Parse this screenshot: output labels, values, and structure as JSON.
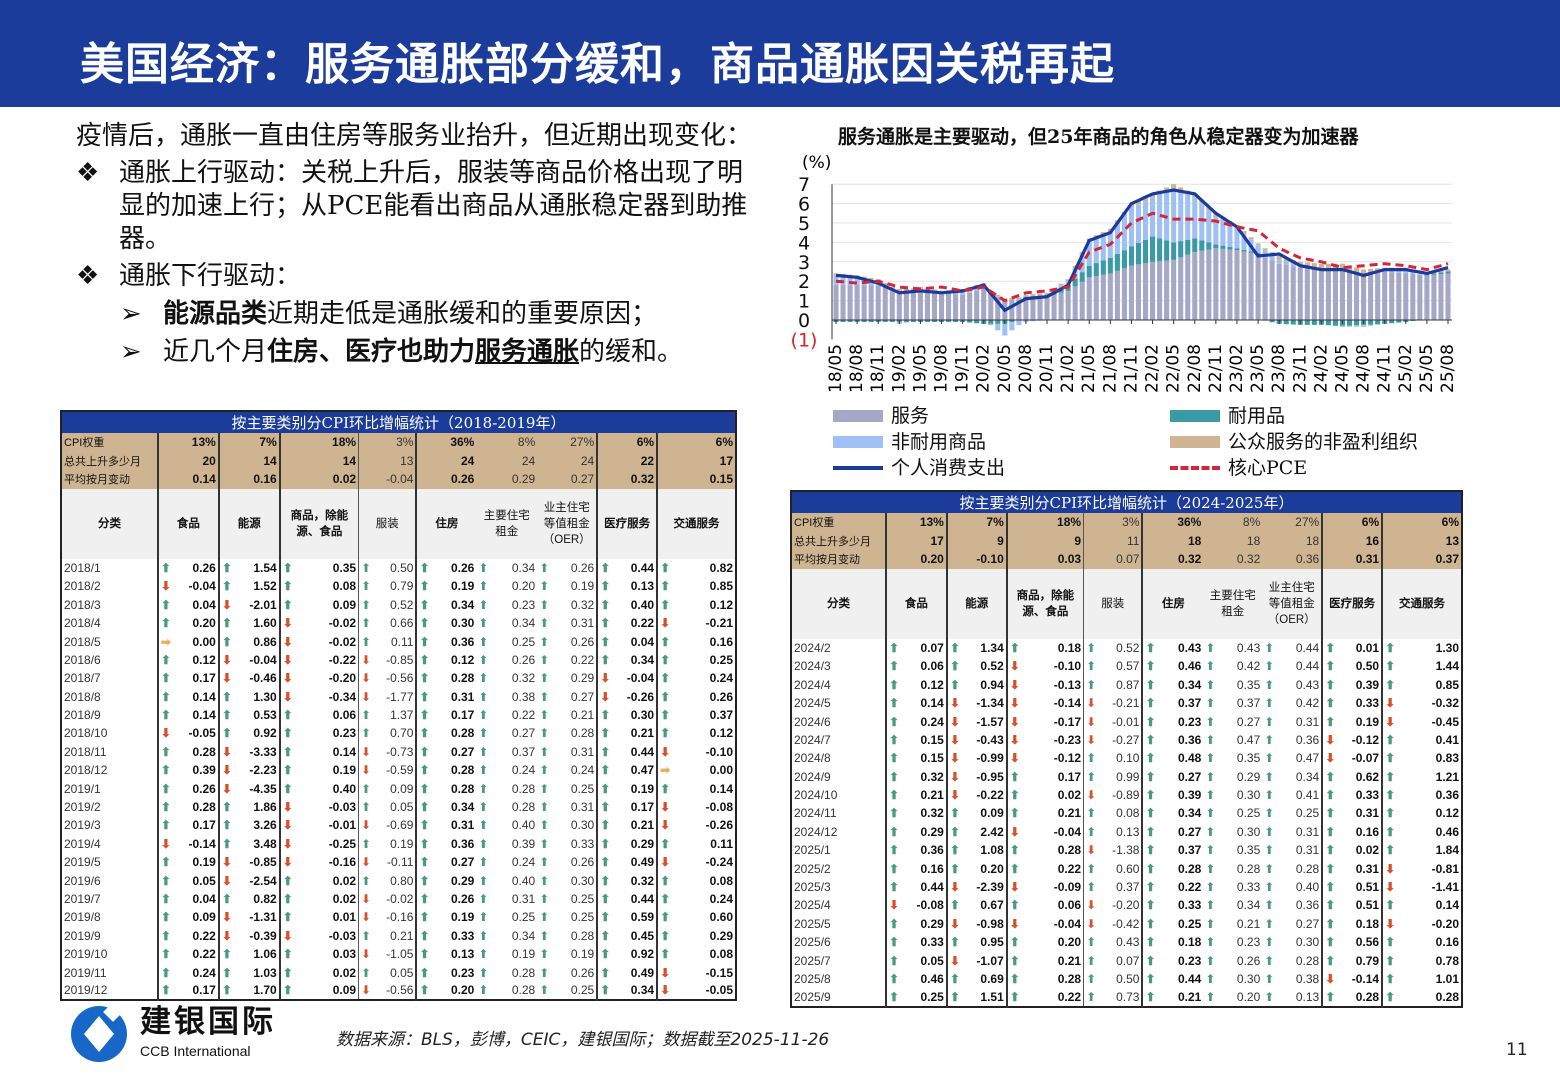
{
  "header": {
    "title": "美国经济：服务通胀部分缓和，商品通胀因关税再起"
  },
  "text": {
    "intro": "疫情后，通胀一直由住房等服务业抬升，但近期出现变化：",
    "bullet_marker": "❖",
    "sub_marker": "➢",
    "b1": "通胀上行驱动：关税上升后，服装等商品价格出现了明显的加速上行；从PCE能看出商品从通胀稳定器到助推器。",
    "b2": "通胀下行驱动：",
    "s1_bold": "能源品类",
    "s1_rest": "近期走低是通胀缓和的重要原因；",
    "s2_pre": "近几个月",
    "s2_bold": "住房、医疗也助力",
    "s2_ul": "服务通胀",
    "s2_rest": "的缓和。"
  },
  "columns": [
    "分类",
    "食品",
    "能源",
    "商品，除能源、食品",
    "服装",
    "住房",
    "主要住宅租金",
    "业主住宅等值租金（OER）",
    "医疗服务",
    "交通服务"
  ],
  "summary_labels": [
    "CPI权重",
    "总共上升多少月",
    "平均按月变动"
  ],
  "table_left": {
    "title": "按主要类别分CPI环比增幅统计（2018-2019年）",
    "summary": [
      [
        "13%",
        "7%",
        "18%",
        "3%",
        "36%",
        "8%",
        "27%",
        "6%",
        "6%"
      ],
      [
        "20",
        "14",
        "14",
        "13",
        "24",
        "24",
        "24",
        "22",
        "17"
      ],
      [
        "0.14",
        "0.16",
        "0.02",
        "-0.04",
        "0.26",
        "0.29",
        "0.27",
        "0.32",
        "0.15"
      ]
    ],
    "rows": [
      [
        "2018/1",
        "0.26",
        "1.54",
        "0.35",
        "0.50",
        "0.26",
        "0.34",
        "0.26",
        "0.44",
        "0.82"
      ],
      [
        "2018/2",
        "-0.04",
        "1.52",
        "0.08",
        "0.79",
        "0.19",
        "0.20",
        "0.19",
        "0.13",
        "0.85"
      ],
      [
        "2018/3",
        "0.04",
        "-2.01",
        "0.09",
        "0.52",
        "0.34",
        "0.23",
        "0.32",
        "0.40",
        "0.12"
      ],
      [
        "2018/4",
        "0.20",
        "1.60",
        "-0.02",
        "0.66",
        "0.30",
        "0.34",
        "0.31",
        "0.22",
        "-0.21"
      ],
      [
        "2018/5",
        "0.00",
        "0.86",
        "-0.02",
        "0.11",
        "0.36",
        "0.25",
        "0.26",
        "0.04",
        "0.16"
      ],
      [
        "2018/6",
        "0.12",
        "-0.04",
        "-0.22",
        "-0.85",
        "0.12",
        "0.26",
        "0.22",
        "0.34",
        "0.25"
      ],
      [
        "2018/7",
        "0.17",
        "-0.46",
        "-0.20",
        "-0.56",
        "0.28",
        "0.32",
        "0.29",
        "-0.04",
        "0.24"
      ],
      [
        "2018/8",
        "0.14",
        "1.30",
        "-0.34",
        "-1.77",
        "0.31",
        "0.38",
        "0.27",
        "-0.26",
        "0.26"
      ],
      [
        "2018/9",
        "0.14",
        "0.53",
        "0.06",
        "1.37",
        "0.17",
        "0.22",
        "0.21",
        "0.30",
        "0.37"
      ],
      [
        "2018/10",
        "-0.05",
        "0.92",
        "0.23",
        "0.70",
        "0.28",
        "0.27",
        "0.28",
        "0.21",
        "0.12"
      ],
      [
        "2018/11",
        "0.28",
        "-3.33",
        "0.14",
        "-0.73",
        "0.27",
        "0.37",
        "0.31",
        "0.44",
        "-0.10"
      ],
      [
        "2018/12",
        "0.39",
        "-2.23",
        "0.19",
        "-0.59",
        "0.28",
        "0.24",
        "0.24",
        "0.47",
        "0.00"
      ],
      [
        "2019/1",
        "0.26",
        "-4.35",
        "0.40",
        "0.09",
        "0.28",
        "0.28",
        "0.25",
        "0.19",
        "0.14"
      ],
      [
        "2019/2",
        "0.28",
        "1.86",
        "-0.03",
        "0.05",
        "0.34",
        "0.28",
        "0.31",
        "0.17",
        "-0.08"
      ],
      [
        "2019/3",
        "0.17",
        "3.26",
        "-0.01",
        "-0.69",
        "0.31",
        "0.40",
        "0.30",
        "0.21",
        "-0.26"
      ],
      [
        "2019/4",
        "-0.14",
        "3.48",
        "-0.25",
        "0.19",
        "0.36",
        "0.39",
        "0.33",
        "0.29",
        "0.11"
      ],
      [
        "2019/5",
        "0.19",
        "-0.85",
        "-0.16",
        "-0.11",
        "0.27",
        "0.24",
        "0.26",
        "0.49",
        "-0.24"
      ],
      [
        "2019/6",
        "0.05",
        "-2.54",
        "0.02",
        "0.80",
        "0.29",
        "0.40",
        "0.30",
        "0.32",
        "0.08"
      ],
      [
        "2019/7",
        "0.04",
        "0.82",
        "0.02",
        "-0.02",
        "0.26",
        "0.31",
        "0.25",
        "0.44",
        "0.24"
      ],
      [
        "2019/8",
        "0.09",
        "-1.31",
        "0.01",
        "-0.16",
        "0.19",
        "0.25",
        "0.25",
        "0.59",
        "0.60"
      ],
      [
        "2019/9",
        "0.22",
        "-0.39",
        "-0.03",
        "0.21",
        "0.33",
        "0.34",
        "0.28",
        "0.45",
        "0.29"
      ],
      [
        "2019/10",
        "0.22",
        "1.06",
        "0.03",
        "-1.05",
        "0.13",
        "0.19",
        "0.19",
        "0.92",
        "0.08"
      ],
      [
        "2019/11",
        "0.24",
        "1.03",
        "0.02",
        "0.05",
        "0.23",
        "0.28",
        "0.26",
        "0.49",
        "-0.15"
      ],
      [
        "2019/12",
        "0.17",
        "1.70",
        "0.09",
        "-0.56",
        "0.20",
        "0.28",
        "0.25",
        "0.34",
        "-0.05"
      ]
    ]
  },
  "table_right": {
    "title": "按主要类别分CPI环比增幅统计（2024-2025年）",
    "summary": [
      [
        "13%",
        "7%",
        "18%",
        "3%",
        "36%",
        "8%",
        "27%",
        "6%",
        "6%"
      ],
      [
        "17",
        "9",
        "9",
        "11",
        "18",
        "18",
        "18",
        "16",
        "13"
      ],
      [
        "0.20",
        "-0.10",
        "0.03",
        "0.07",
        "0.32",
        "0.32",
        "0.36",
        "0.31",
        "0.37"
      ]
    ],
    "rows": [
      [
        "2024/2",
        "0.07",
        "1.34",
        "0.18",
        "0.52",
        "0.43",
        "0.43",
        "0.44",
        "0.01",
        "1.30"
      ],
      [
        "2024/3",
        "0.06",
        "0.52",
        "-0.10",
        "0.57",
        "0.46",
        "0.42",
        "0.44",
        "0.50",
        "1.44"
      ],
      [
        "2024/4",
        "0.12",
        "0.94",
        "-0.13",
        "0.87",
        "0.34",
        "0.35",
        "0.43",
        "0.39",
        "0.85"
      ],
      [
        "2024/5",
        "0.14",
        "-1.34",
        "-0.14",
        "-0.21",
        "0.37",
        "0.37",
        "0.42",
        "0.33",
        "-0.32"
      ],
      [
        "2024/6",
        "0.24",
        "-1.57",
        "-0.17",
        "-0.01",
        "0.23",
        "0.27",
        "0.31",
        "0.19",
        "-0.45"
      ],
      [
        "2024/7",
        "0.15",
        "-0.43",
        "-0.23",
        "-0.27",
        "0.36",
        "0.47",
        "0.36",
        "-0.12",
        "0.41"
      ],
      [
        "2024/8",
        "0.15",
        "-0.99",
        "-0.12",
        "0.10",
        "0.48",
        "0.35",
        "0.47",
        "-0.07",
        "0.83"
      ],
      [
        "2024/9",
        "0.32",
        "-0.95",
        "0.17",
        "0.99",
        "0.27",
        "0.29",
        "0.34",
        "0.62",
        "1.21"
      ],
      [
        "2024/10",
        "0.21",
        "-0.22",
        "0.02",
        "-0.89",
        "0.39",
        "0.30",
        "0.41",
        "0.33",
        "0.36"
      ],
      [
        "2024/11",
        "0.32",
        "0.09",
        "0.21",
        "0.08",
        "0.34",
        "0.25",
        "0.25",
        "0.31",
        "0.12"
      ],
      [
        "2024/12",
        "0.29",
        "2.42",
        "-0.04",
        "0.13",
        "0.27",
        "0.30",
        "0.31",
        "0.16",
        "0.46"
      ],
      [
        "2025/1",
        "0.36",
        "1.08",
        "0.28",
        "-1.38",
        "0.37",
        "0.35",
        "0.31",
        "0.02",
        "1.84"
      ],
      [
        "2025/2",
        "0.16",
        "0.20",
        "0.22",
        "0.60",
        "0.28",
        "0.28",
        "0.28",
        "0.31",
        "-0.81"
      ],
      [
        "2025/3",
        "0.44",
        "-2.39",
        "-0.09",
        "0.37",
        "0.22",
        "0.33",
        "0.40",
        "0.51",
        "-1.41"
      ],
      [
        "2025/4",
        "-0.08",
        "0.67",
        "0.06",
        "-0.20",
        "0.33",
        "0.34",
        "0.36",
        "0.51",
        "0.14"
      ],
      [
        "2025/5",
        "0.29",
        "-0.98",
        "-0.04",
        "-0.42",
        "0.25",
        "0.21",
        "0.27",
        "0.18",
        "-0.20"
      ],
      [
        "2025/6",
        "0.33",
        "0.95",
        "0.20",
        "0.43",
        "0.18",
        "0.23",
        "0.30",
        "0.56",
        "0.16"
      ],
      [
        "2025/7",
        "0.05",
        "-1.07",
        "0.21",
        "0.07",
        "0.23",
        "0.26",
        "0.28",
        "0.79",
        "0.78"
      ],
      [
        "2025/8",
        "0.46",
        "0.69",
        "0.28",
        "0.50",
        "0.44",
        "0.30",
        "0.38",
        "-0.14",
        "1.01"
      ],
      [
        "2025/9",
        "0.25",
        "1.51",
        "0.22",
        "0.73",
        "0.21",
        "0.20",
        "0.13",
        "0.28",
        "0.28"
      ]
    ]
  },
  "chart_data": {
    "type": "bar+line",
    "title": "服务通胀是主要驱动，但25年商品的角色从稳定器变为加速器",
    "ylabel": "(%)",
    "ylim": [
      -1,
      7
    ],
    "yticks": [
      "(1)",
      "0",
      "1",
      "2",
      "3",
      "4",
      "5",
      "6",
      "7"
    ],
    "x": [
      "18/05",
      "18/08",
      "18/11",
      "19/02",
      "19/05",
      "19/08",
      "19/11",
      "20/02",
      "20/05",
      "20/08",
      "20/11",
      "21/02",
      "21/05",
      "21/08",
      "21/11",
      "22/02",
      "22/05",
      "22/08",
      "22/11",
      "23/02",
      "23/05",
      "23/08",
      "23/11",
      "24/02",
      "24/05",
      "24/08",
      "24/11",
      "25/02",
      "25/05",
      "25/08"
    ],
    "series": [
      {
        "name": "服务",
        "kind": "bar",
        "color": "#a4a8c6",
        "values": [
          1.8,
          1.8,
          1.8,
          1.5,
          1.5,
          1.4,
          1.3,
          1.6,
          1.0,
          1.1,
          1.2,
          1.5,
          2.2,
          2.4,
          2.8,
          3.0,
          3.1,
          3.5,
          3.7,
          3.6,
          3.4,
          2.9,
          2.7,
          2.7,
          2.6,
          2.4,
          2.5,
          2.4,
          2.3,
          2.4
        ]
      },
      {
        "name": "耐用品",
        "kind": "bar",
        "color": "#3a9aa5",
        "values": [
          -0.1,
          -0.1,
          -0.1,
          -0.1,
          -0.1,
          -0.1,
          -0.1,
          -0.2,
          -0.2,
          0.1,
          0.1,
          0.3,
          0.6,
          0.8,
          1.0,
          1.3,
          0.9,
          0.7,
          0.2,
          0.1,
          0.05,
          -0.2,
          -0.25,
          -0.25,
          -0.3,
          -0.25,
          -0.2,
          -0.1,
          0.05,
          0.1
        ]
      },
      {
        "name": "非耐用商品",
        "kind": "bar",
        "color": "#9fc0f4",
        "values": [
          0.5,
          0.4,
          0.2,
          -0.1,
          0.1,
          0.0,
          0.2,
          0.2,
          -0.6,
          -0.1,
          0.0,
          0.2,
          1.2,
          1.3,
          2.0,
          2.0,
          2.8,
          2.1,
          1.4,
          1.0,
          0.4,
          0.2,
          0.1,
          0.0,
          -0.05,
          -0.1,
          0.0,
          0.1,
          0.0,
          0.0
        ]
      },
      {
        "name": "公众服务的非盈利组织",
        "kind": "bar",
        "color": "#cfb594",
        "values": [
          0.1,
          0.1,
          0.1,
          0.1,
          0.1,
          0.1,
          0.1,
          0.1,
          0.1,
          0.1,
          0.1,
          0.1,
          0.2,
          0.2,
          0.2,
          0.2,
          0.2,
          0.2,
          0.2,
          0.2,
          0.1,
          0.2,
          0.2,
          0.2,
          0.3,
          0.2,
          0.2,
          0.2,
          0.1,
          0.1
        ]
      },
      {
        "name": "个人消费支出",
        "kind": "line",
        "color": "#1a3a9c",
        "values": [
          2.3,
          2.2,
          1.9,
          1.4,
          1.5,
          1.4,
          1.5,
          1.8,
          0.5,
          1.1,
          1.2,
          1.8,
          4.1,
          4.5,
          6.0,
          6.5,
          6.7,
          6.5,
          5.5,
          4.8,
          3.3,
          3.4,
          2.8,
          2.6,
          2.6,
          2.3,
          2.6,
          2.6,
          2.4,
          2.7
        ]
      },
      {
        "name": "核心PCE",
        "kind": "dashed-line",
        "color": "#d3263d",
        "values": [
          2.0,
          1.9,
          2.0,
          1.7,
          1.6,
          1.7,
          1.5,
          1.7,
          1.0,
          1.4,
          1.5,
          1.7,
          3.5,
          3.9,
          5.0,
          5.5,
          5.2,
          5.2,
          5.1,
          4.8,
          4.6,
          3.7,
          3.2,
          3.0,
          2.7,
          2.8,
          2.9,
          2.8,
          2.6,
          2.9
        ]
      }
    ],
    "legend": "bottom"
  },
  "footer": {
    "logo_cn": "建银国际",
    "logo_en": "CCB International",
    "source": "数据来源：BLS，彭博，CEIC，建银国际；数据截至2025-11-26",
    "page": "11"
  }
}
